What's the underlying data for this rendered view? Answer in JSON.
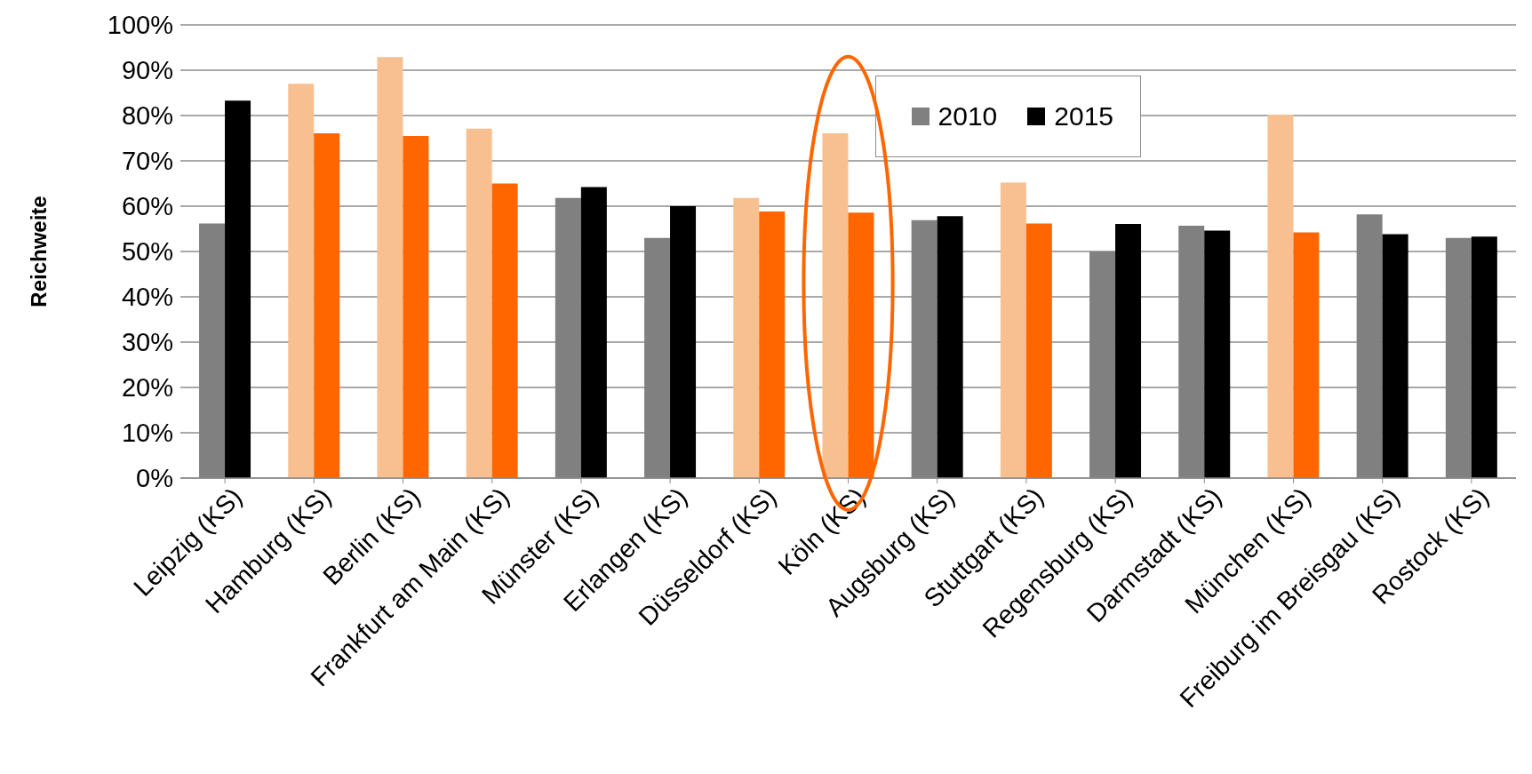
{
  "chart_data": {
    "type": "bar",
    "ylabel": "Reichweite",
    "categories": [
      "Leipzig (KS)",
      "Hamburg (KS)",
      "Berlin (KS)",
      "Frankfurt am Main (KS)",
      "Münster (KS)",
      "Erlangen (KS)",
      "Düsseldorf (KS)",
      "Köln (KS)",
      "Augsburg (KS)",
      "Stuttgart (KS)",
      "Regensburg (KS)",
      "Darmstadt (KS)",
      "München (KS)",
      "Freiburg im Breisgau (KS)",
      "Rostock (KS)"
    ],
    "series": [
      {
        "name": "2010",
        "color": "#808080",
        "colors": [
          "#808080",
          "#f8c090",
          "#f8c090",
          "#f8c090",
          "#808080",
          "#808080",
          "#f8c090",
          "#f8c090",
          "#808080",
          "#f8c090",
          "#808080",
          "#808080",
          "#f8c090",
          "#808080",
          "#808080"
        ],
        "values": [
          56.2,
          87.0,
          92.9,
          77.1,
          61.8,
          53.0,
          61.8,
          76.1,
          56.9,
          65.2,
          50.0,
          55.7,
          80.2,
          58.2,
          53.0
        ]
      },
      {
        "name": "2015",
        "color": "#000000",
        "colors": [
          "#000000",
          "#ff6600",
          "#ff6600",
          "#ff6600",
          "#000000",
          "#000000",
          "#ff6600",
          "#ff6600",
          "#000000",
          "#ff6600",
          "#000000",
          "#000000",
          "#ff6600",
          "#000000",
          "#000000"
        ],
        "values": [
          83.3,
          76.1,
          75.5,
          65.0,
          64.2,
          60.0,
          58.8,
          58.6,
          57.8,
          56.2,
          56.1,
          54.6,
          54.2,
          53.8,
          53.3
        ]
      }
    ],
    "ylim": [
      0,
      100
    ],
    "yticks": [
      {
        "value": 0,
        "label": "0%"
      },
      {
        "value": 10,
        "label": "10%"
      },
      {
        "value": 20,
        "label": "20%"
      },
      {
        "value": 30,
        "label": "30%"
      },
      {
        "value": 40,
        "label": "40%"
      },
      {
        "value": 50,
        "label": "50%"
      },
      {
        "value": 60,
        "label": "60%"
      },
      {
        "value": 70,
        "label": "70%"
      },
      {
        "value": 80,
        "label": "80%"
      },
      {
        "value": 90,
        "label": "90%"
      },
      {
        "value": 100,
        "label": "100%"
      }
    ],
    "grid": "y",
    "legend": "top right"
  }
}
